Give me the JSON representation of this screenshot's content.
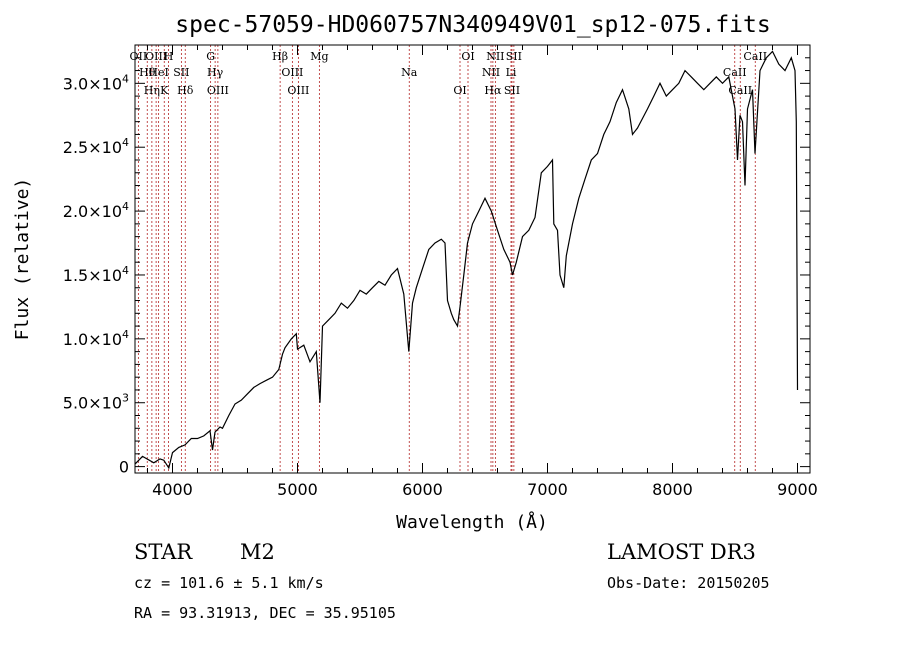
{
  "chart_data": {
    "type": "line",
    "title": "spec-57059-HD060757N340949V01_sp12-075.fits",
    "xlabel": "Wavelength (Å)",
    "ylabel": "Flux (relative)",
    "xlim": [
      3700,
      9100
    ],
    "ylim": [
      -500,
      33000
    ],
    "xticks": [
      4000,
      5000,
      6000,
      7000,
      8000,
      9000
    ],
    "yticks": [
      {
        "value": 0,
        "label": "0"
      },
      {
        "value": 5000,
        "label": "5.0×10",
        "exp": "3"
      },
      {
        "value": 10000,
        "label": "1.0×10",
        "exp": "4"
      },
      {
        "value": 15000,
        "label": "1.5×10",
        "exp": "4"
      },
      {
        "value": 20000,
        "label": "2.0×10",
        "exp": "4"
      },
      {
        "value": 25000,
        "label": "2.5×10",
        "exp": "4"
      },
      {
        "value": 30000,
        "label": "3.0×10",
        "exp": "4"
      }
    ],
    "series": [
      {
        "name": "spectrum",
        "points": [
          [
            3700,
            200
          ],
          [
            3760,
            800
          ],
          [
            3850,
            300
          ],
          [
            3900,
            600
          ],
          [
            3930,
            500
          ],
          [
            3970,
            -100
          ],
          [
            4000,
            1100
          ],
          [
            4050,
            1500
          ],
          [
            4100,
            1700
          ],
          [
            4150,
            2200
          ],
          [
            4200,
            2200
          ],
          [
            4250,
            2400
          ],
          [
            4300,
            2800
          ],
          [
            4320,
            1300
          ],
          [
            4340,
            2700
          ],
          [
            4380,
            3100
          ],
          [
            4400,
            3000
          ],
          [
            4450,
            4000
          ],
          [
            4500,
            4900
          ],
          [
            4550,
            5200
          ],
          [
            4600,
            5700
          ],
          [
            4650,
            6200
          ],
          [
            4700,
            6500
          ],
          [
            4760,
            6800
          ],
          [
            4800,
            7000
          ],
          [
            4850,
            7600
          ],
          [
            4880,
            8800
          ],
          [
            4900,
            9300
          ],
          [
            4950,
            10000
          ],
          [
            4990,
            10400
          ],
          [
            5000,
            9200
          ],
          [
            5050,
            9500
          ],
          [
            5100,
            8200
          ],
          [
            5150,
            9000
          ],
          [
            5180,
            5000
          ],
          [
            5200,
            11000
          ],
          [
            5250,
            11500
          ],
          [
            5300,
            12000
          ],
          [
            5350,
            12800
          ],
          [
            5400,
            12400
          ],
          [
            5450,
            13000
          ],
          [
            5500,
            13800
          ],
          [
            5550,
            13500
          ],
          [
            5600,
            14000
          ],
          [
            5650,
            14500
          ],
          [
            5700,
            14200
          ],
          [
            5750,
            15000
          ],
          [
            5800,
            15500
          ],
          [
            5850,
            13500
          ],
          [
            5890,
            9000
          ],
          [
            5920,
            12800
          ],
          [
            5950,
            14000
          ],
          [
            6000,
            15500
          ],
          [
            6050,
            17000
          ],
          [
            6100,
            17500
          ],
          [
            6150,
            17800
          ],
          [
            6180,
            17500
          ],
          [
            6200,
            13000
          ],
          [
            6230,
            12000
          ],
          [
            6250,
            11500
          ],
          [
            6280,
            11000
          ],
          [
            6300,
            12500
          ],
          [
            6330,
            15000
          ],
          [
            6360,
            17500
          ],
          [
            6400,
            19000
          ],
          [
            6450,
            20000
          ],
          [
            6500,
            21000
          ],
          [
            6550,
            20000
          ],
          [
            6600,
            18500
          ],
          [
            6650,
            17000
          ],
          [
            6700,
            16000
          ],
          [
            6720,
            15000
          ],
          [
            6750,
            16000
          ],
          [
            6800,
            18000
          ],
          [
            6850,
            18500
          ],
          [
            6900,
            19500
          ],
          [
            6950,
            23000
          ],
          [
            7000,
            23500
          ],
          [
            7040,
            24000
          ],
          [
            7050,
            19000
          ],
          [
            7080,
            18500
          ],
          [
            7100,
            15000
          ],
          [
            7130,
            14000
          ],
          [
            7150,
            16500
          ],
          [
            7200,
            19000
          ],
          [
            7250,
            21000
          ],
          [
            7300,
            22500
          ],
          [
            7350,
            24000
          ],
          [
            7400,
            24500
          ],
          [
            7450,
            26000
          ],
          [
            7500,
            27000
          ],
          [
            7550,
            28500
          ],
          [
            7600,
            29500
          ],
          [
            7650,
            28000
          ],
          [
            7680,
            26000
          ],
          [
            7720,
            26500
          ],
          [
            7800,
            28000
          ],
          [
            7850,
            29000
          ],
          [
            7900,
            30000
          ],
          [
            7950,
            29000
          ],
          [
            8000,
            29500
          ],
          [
            8050,
            30000
          ],
          [
            8100,
            31000
          ],
          [
            8150,
            30500
          ],
          [
            8200,
            30000
          ],
          [
            8250,
            29500
          ],
          [
            8300,
            30000
          ],
          [
            8350,
            30500
          ],
          [
            8400,
            30000
          ],
          [
            8450,
            30500
          ],
          [
            8480,
            29000
          ],
          [
            8500,
            28000
          ],
          [
            8520,
            24000
          ],
          [
            8540,
            27500
          ],
          [
            8560,
            27000
          ],
          [
            8580,
            22000
          ],
          [
            8600,
            28000
          ],
          [
            8640,
            29500
          ],
          [
            8660,
            24500
          ],
          [
            8700,
            31000
          ],
          [
            8750,
            32000
          ],
          [
            8800,
            32500
          ],
          [
            8850,
            31500
          ],
          [
            8900,
            31000
          ],
          [
            8950,
            32000
          ],
          [
            8980,
            31000
          ],
          [
            8990,
            27000
          ],
          [
            9000,
            6000
          ]
        ]
      }
    ],
    "line_ids": [
      {
        "x": 3727,
        "label": "OII"
      },
      {
        "x": 3798,
        "label": "Hθ"
      },
      {
        "x": 3835,
        "label": "Hη"
      },
      {
        "x": 3869,
        "label": "OIII"
      },
      {
        "x": 3889,
        "label": "HeI"
      },
      {
        "x": 3934,
        "label": "K"
      },
      {
        "x": 3968,
        "label": "H"
      },
      {
        "x": 4071,
        "label": "SII"
      },
      {
        "x": 4102,
        "label": "Hδ"
      },
      {
        "x": 4305,
        "label": "G"
      },
      {
        "x": 4341,
        "label": "Hγ"
      },
      {
        "x": 4363,
        "label": "OIII"
      },
      {
        "x": 4861,
        "label": "Hβ"
      },
      {
        "x": 4959,
        "label": "OIII"
      },
      {
        "x": 5007,
        "label": "OIII"
      },
      {
        "x": 5175,
        "label": "Mg"
      },
      {
        "x": 5894,
        "label": "Na"
      },
      {
        "x": 6300,
        "label": "OI"
      },
      {
        "x": 6364,
        "label": "OI"
      },
      {
        "x": 6548,
        "label": "NII"
      },
      {
        "x": 6563,
        "label": "Hα"
      },
      {
        "x": 6583,
        "label": "NII"
      },
      {
        "x": 6708,
        "label": "Li"
      },
      {
        "x": 6716,
        "label": "SII"
      },
      {
        "x": 6731,
        "label": "SII"
      },
      {
        "x": 8498,
        "label": "CaII"
      },
      {
        "x": 8542,
        "label": "CaII"
      },
      {
        "x": 8662,
        "label": "CaII"
      }
    ]
  },
  "info": {
    "type_label": "STAR",
    "subclass": "M2",
    "survey": "LAMOST DR3",
    "cz": "cz = 101.6 ± 5.1 km/s",
    "obs_date": "Obs-Date: 20150205",
    "coords": "RA =  93.31913, DEC =  35.95105"
  },
  "colors": {
    "spectrum": "#000000",
    "line_marker": "#b22222",
    "axis": "#000000"
  }
}
